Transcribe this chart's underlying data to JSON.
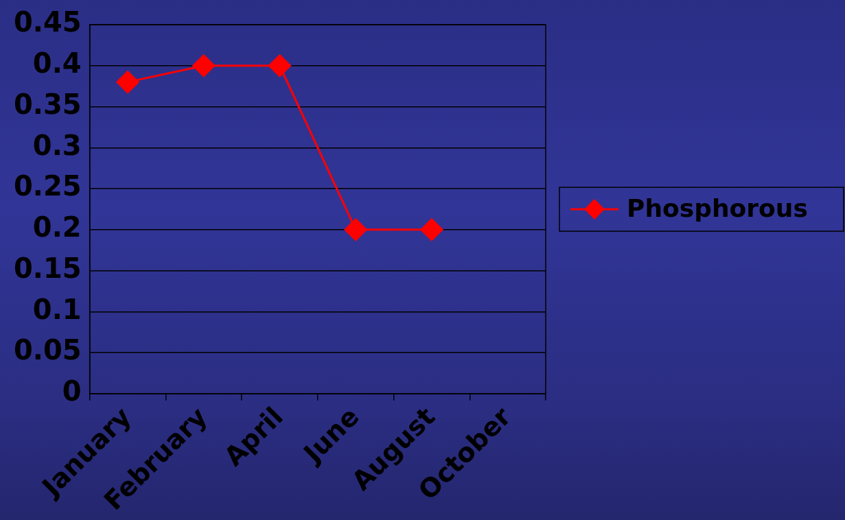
{
  "chart_data": {
    "type": "line",
    "categories": [
      "January",
      "February",
      "April",
      "June",
      "August",
      "October"
    ],
    "series": [
      {
        "name": "Phosphorous",
        "color": "#ff0000",
        "values": [
          0.38,
          0.4,
          0.4,
          0.2,
          0.2,
          null
        ]
      }
    ],
    "ylim": [
      0,
      0.45
    ],
    "yticks": [
      0,
      0.05,
      0.1,
      0.15,
      0.2,
      0.25,
      0.3,
      0.35,
      0.4,
      0.45
    ],
    "grid": "y",
    "legend": "right",
    "marker": "diamond",
    "line_style": "solid"
  }
}
